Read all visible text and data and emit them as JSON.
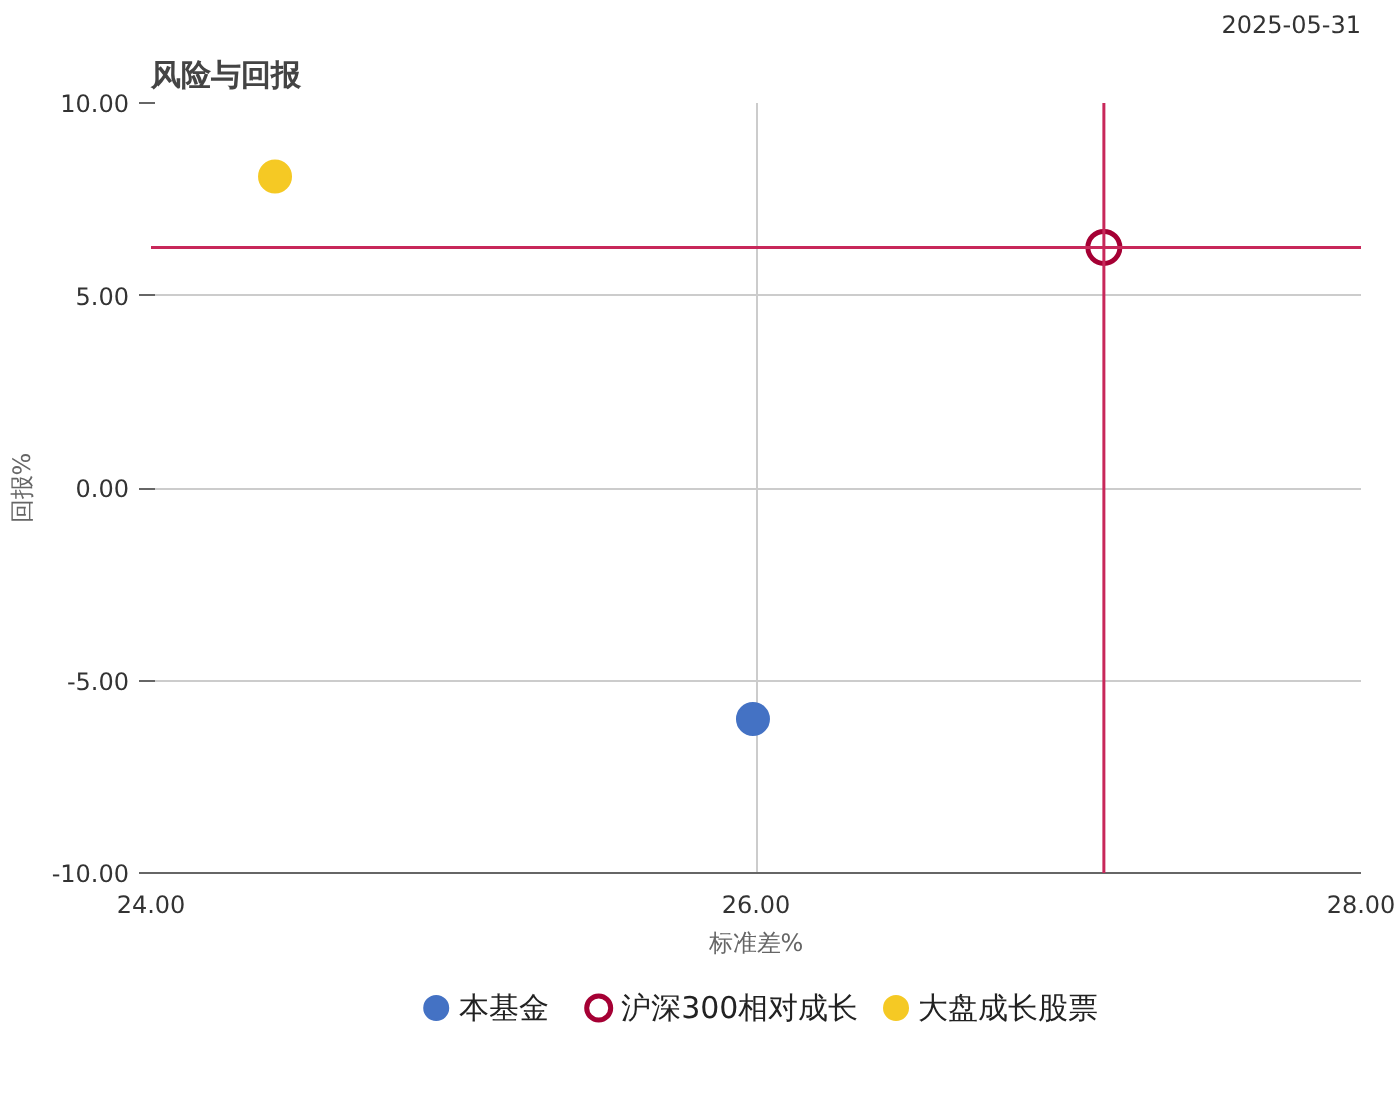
{
  "chart_data": {
    "type": "scatter",
    "title": "风险与回报",
    "annotations": [
      "2025-05-31"
    ],
    "xlabel": "标准差%",
    "ylabel": "回报%",
    "xlim": [
      24,
      28
    ],
    "xticks": [
      {
        "value": 24,
        "label": "24.00"
      },
      {
        "value": 26,
        "label": "26.00"
      },
      {
        "value": 28,
        "label": "28.00"
      }
    ],
    "ylim": [
      -10,
      10
    ],
    "yticks": [
      {
        "value": -10,
        "label": "-10.00"
      },
      {
        "value": -5,
        "label": "-5.00"
      },
      {
        "value": 0,
        "label": "0.00"
      },
      {
        "value": 5,
        "label": "5.00"
      },
      {
        "value": 10,
        "label": "10.00"
      }
    ],
    "grid": true,
    "legend": "bottom",
    "marker": "circle",
    "series": [
      {
        "name": "本基金",
        "color": "#4472c4",
        "x": [
          25.99
        ],
        "values": [
          -6.0
        ]
      },
      {
        "name": "沪深300相对成长",
        "color": "#a50034",
        "x": [
          27.15
        ],
        "values": [
          6.25
        ]
      },
      {
        "name": "大盘成长股票",
        "color": "#f5c924",
        "x": [
          24.41
        ],
        "values": [
          8.09
        ]
      }
    ],
    "ref_lines": [
      {
        "axis": "x",
        "value": 27.15,
        "color": "#c8285a"
      },
      {
        "axis": "y",
        "value": 6.25,
        "color": "#c8285a"
      }
    ]
  }
}
